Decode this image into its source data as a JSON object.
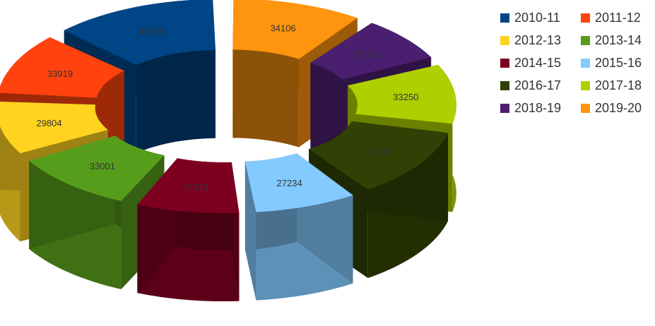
{
  "chart_data": {
    "type": "pie",
    "variant": "3d-exploded-donut",
    "title": "",
    "categories": [
      "2010-11",
      "2011-12",
      "2012-13",
      "2013-14",
      "2014-15",
      "2015-16",
      "2016-17",
      "2017-18",
      "2018-19",
      "2019-20"
    ],
    "values": [
      42505,
      33919,
      29804,
      33001,
      27213,
      27234,
      38166,
      33250,
      25036,
      34106
    ],
    "colors": [
      "#004586",
      "#ff420e",
      "#ffd320",
      "#579d1c",
      "#7e0021",
      "#83caff",
      "#314004",
      "#aecf00",
      "#4b1f6f",
      "#ff950e"
    ],
    "data_labels": true,
    "legend_position": "right"
  }
}
